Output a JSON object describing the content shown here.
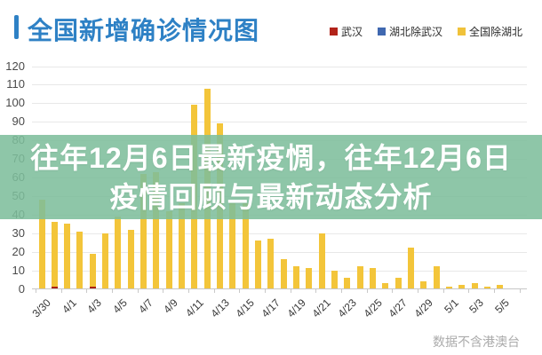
{
  "header": {
    "title": "全国新增确诊情况图"
  },
  "legend": {
    "items": [
      {
        "key": "wuhan",
        "label": "武汉",
        "color": "#b2231a"
      },
      {
        "key": "hubei-except-wuhan",
        "label": "湖北除武汉",
        "color": "#4068b0"
      },
      {
        "key": "national-except-hubei",
        "label": "全国除湖北",
        "color": "#f0c23a"
      }
    ]
  },
  "overlay": {
    "line1": "往年12月6日最新疫惆，往年12月6日",
    "line2": "疫情回顾与最新动态分析",
    "bg_color": "rgba(125,190,155,0.87)",
    "text_color": "#ffffff"
  },
  "footer": {
    "note": "数据不含港澳台"
  },
  "colors": {
    "title_accent": "#2e81c5",
    "bar_yellow": "#f3c53a",
    "wuhan_red": "#a82012",
    "hubei_blue": "#4068b0",
    "gridline": "#e8e8e8",
    "axis": "#c6c6c6"
  },
  "chart_data": {
    "type": "bar",
    "stacked": true,
    "title": "全国新增确诊情况图",
    "note": "数据不含港澳台",
    "categories": [
      "3/30",
      "3/31",
      "4/1",
      "4/2",
      "4/3",
      "4/4",
      "4/5",
      "4/6",
      "4/7",
      "4/8",
      "4/9",
      "4/10",
      "4/11",
      "4/12",
      "4/13",
      "4/14",
      "4/15",
      "4/16",
      "4/17",
      "4/18",
      "4/19",
      "4/20",
      "4/21",
      "4/22",
      "4/23",
      "4/24",
      "4/25",
      "4/26",
      "4/27",
      "4/28",
      "4/29",
      "4/30",
      "5/1",
      "5/2",
      "5/3",
      "5/4",
      "5/5"
    ],
    "series": [
      {
        "name": "武汉",
        "color": "#a82012",
        "values": [
          0,
          1,
          0,
          0,
          1,
          0,
          0,
          0,
          0,
          0,
          0,
          0,
          0,
          0,
          0,
          0,
          0,
          0,
          0,
          0,
          0,
          0,
          0,
          0,
          0,
          0,
          0,
          0,
          0,
          0,
          0,
          0,
          0,
          0,
          0,
          0,
          0
        ]
      },
      {
        "name": "湖北除武汉",
        "color": "#4068b0",
        "values": [
          0,
          0,
          0,
          0,
          0,
          0,
          0,
          0,
          0,
          0,
          0,
          0,
          0,
          0,
          0,
          0,
          0,
          0,
          0,
          0,
          0,
          0,
          0,
          0,
          0,
          0,
          0,
          0,
          0,
          0,
          0,
          0,
          0,
          0,
          0,
          0,
          0
        ]
      },
      {
        "name": "全国除湖北",
        "color": "#f3c53a",
        "values": [
          48,
          36,
          35,
          31,
          19,
          30,
          39,
          32,
          62,
          63,
          42,
          46,
          99,
          108,
          89,
          46,
          46,
          26,
          27,
          16,
          12,
          11,
          30,
          10,
          6,
          12,
          11,
          3,
          6,
          22,
          4,
          12,
          1,
          2,
          3,
          1,
          2
        ]
      }
    ],
    "ylim": [
      0,
      120
    ],
    "yticks": [
      0,
      10,
      20,
      30,
      40,
      50,
      60,
      70,
      80,
      90,
      100,
      110,
      120
    ],
    "x_label_every": 2,
    "grid": true,
    "legend_position": "top-right"
  }
}
